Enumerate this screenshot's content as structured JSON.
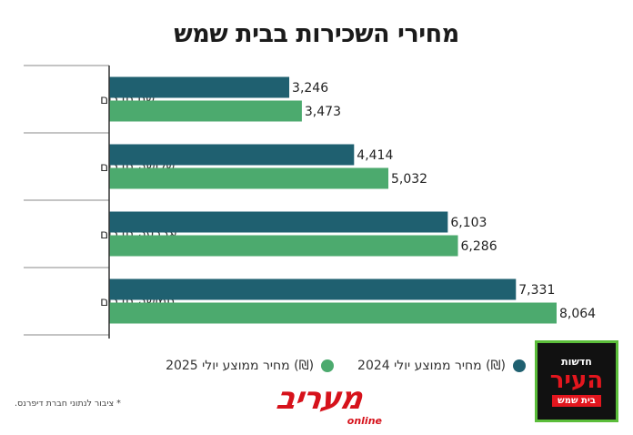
{
  "chart_data": {
    "type": "bar",
    "orientation": "horizontal",
    "title": "מחירי השכירות בבית שמש",
    "categories": [
      "שני חדרים",
      "שלושה חדרים",
      "ארבעה חדרים",
      "חמישה חדרים"
    ],
    "series": [
      {
        "name": "(₪) מחיר ממוצע יולי 2024",
        "color": "#1f6070",
        "values": [
          3246,
          4414,
          6103,
          7331
        ]
      },
      {
        "name": "(₪) מחיר ממוצע יולי 2025",
        "color": "#4caa6e",
        "values": [
          3473,
          5032,
          6286,
          8064
        ]
      }
    ],
    "xlim": [
      0,
      8200
    ],
    "grid": false,
    "legend_position": "bottom"
  },
  "footnote": "* ציבור לנתוני חברת דיפרנס.",
  "logos": {
    "maariv": "מעריב",
    "maariv_sub": "online",
    "badge_top": "חדשות",
    "badge_main": "העיר",
    "badge_bottom": "בית שמש"
  }
}
